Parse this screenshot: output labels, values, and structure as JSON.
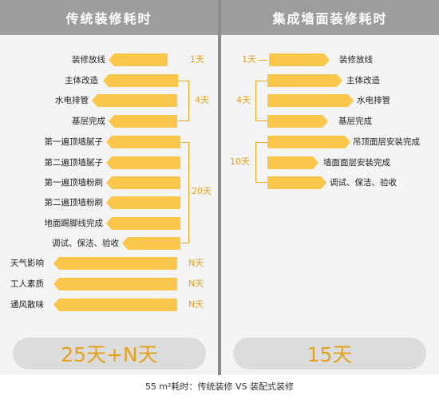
{
  "left_panel": {
    "title": "传统装修耗时",
    "steps": [
      "装修放线",
      "主体改造",
      "水电排管",
      "基层完成",
      "第一遍顶墙腻子",
      "第二遍顶墙腻子",
      "第一遍顶墙粉刷",
      "第二遍顶墙粉刷",
      "地面踢脚线完成",
      "调试、保洁、验收",
      "天气影响",
      "工人素质",
      "通风散味"
    ],
    "durations": {
      "setup": "1天",
      "rough": "4天",
      "finish": "20天",
      "weather": "N天",
      "workers": "N天",
      "ventilation": "N天"
    },
    "total": "25天+N天"
  },
  "right_panel": {
    "title": "集成墙面装修耗时",
    "steps": [
      "装修放线",
      "主体改造",
      "水电排管",
      "基层完成",
      "吊顶面层安装完成",
      "墙面面层安装完成",
      "调试、保洁、验收"
    ],
    "durations": {
      "setup": "1天",
      "rough": "4天",
      "finish": "10天"
    },
    "total": "15天"
  },
  "caption": "55 m²耗时：传统装修 VS 装配式装修",
  "colors": {
    "bar": "#fbc64c",
    "accent": "#e5a21a",
    "header": "#9d9d9d",
    "panel": "#f4f4f4",
    "total_pill": "#dcdcdc"
  }
}
